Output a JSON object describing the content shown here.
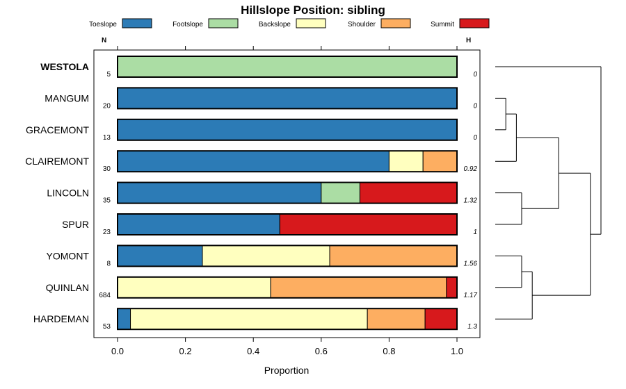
{
  "chart_data": {
    "type": "bar",
    "orientation": "horizontal",
    "stacked": true,
    "title": "Hillslope Position: sibling",
    "xlabel": "Proportion",
    "ylabel": "",
    "xlim": [
      0,
      1
    ],
    "xticks": [
      "0.0",
      "0.2",
      "0.4",
      "0.6",
      "0.8",
      "1.0"
    ],
    "legend": [
      {
        "name": "Toeslope",
        "color": "#2c7bb6"
      },
      {
        "name": "Footslope",
        "color": "#abdda4"
      },
      {
        "name": "Backslope",
        "color": "#ffffbf"
      },
      {
        "name": "Shoulder",
        "color": "#fdae61"
      },
      {
        "name": "Summit",
        "color": "#d7191c"
      }
    ],
    "n_header": "N",
    "h_header": "H",
    "bold_category": "WESTOLA",
    "categories": [
      "WESTOLA",
      "MANGUM",
      "GRACEMONT",
      "CLAIREMONT",
      "LINCOLN",
      "SPUR",
      "YOMONT",
      "QUINLAN",
      "HARDEMAN"
    ],
    "n": [
      "5",
      "20",
      "13",
      "30",
      "35",
      "23",
      "8",
      "684",
      "53"
    ],
    "h": [
      "0",
      "0",
      "0",
      "0.92",
      "1.32",
      "1",
      "1.56",
      "1.17",
      "1.3"
    ],
    "series": [
      {
        "name": "Toeslope",
        "values": [
          0,
          1,
          1,
          0.8,
          0.6,
          0.478,
          0.25,
          0,
          0.038
        ]
      },
      {
        "name": "Footslope",
        "values": [
          1,
          0,
          0,
          0,
          0.114,
          0,
          0,
          0,
          0
        ]
      },
      {
        "name": "Backslope",
        "values": [
          0,
          0,
          0,
          0.1,
          0,
          0,
          0.375,
          0.451,
          0.698
        ]
      },
      {
        "name": "Shoulder",
        "values": [
          0,
          0,
          0,
          0.1,
          0,
          0,
          0.375,
          0.518,
          0.17
        ]
      },
      {
        "name": "Summit",
        "values": [
          0,
          0,
          0,
          0,
          0.286,
          0.522,
          0,
          0.031,
          0.094
        ]
      }
    ],
    "dendrogram": {
      "leaves": [
        "WESTOLA",
        "MANGUM",
        "GRACEMONT",
        "CLAIREMONT",
        "LINCOLN",
        "SPUR",
        "YOMONT",
        "QUINLAN",
        "HARDEMAN"
      ],
      "merges": [
        {
          "a": "L1",
          "b": "L2",
          "height": 0.1
        },
        {
          "a": "m0",
          "b": "L3",
          "height": 0.2
        },
        {
          "a": "L4",
          "b": "L5",
          "height": 0.25
        },
        {
          "a": "m1",
          "b": "m2",
          "height": 0.6
        },
        {
          "a": "L6",
          "b": "L7",
          "height": 0.25
        },
        {
          "a": "m4",
          "b": "L8",
          "height": 0.35
        },
        {
          "a": "m3",
          "b": "m5",
          "height": 0.9
        },
        {
          "a": "L0",
          "b": "m6",
          "height": 1.0
        }
      ]
    }
  }
}
